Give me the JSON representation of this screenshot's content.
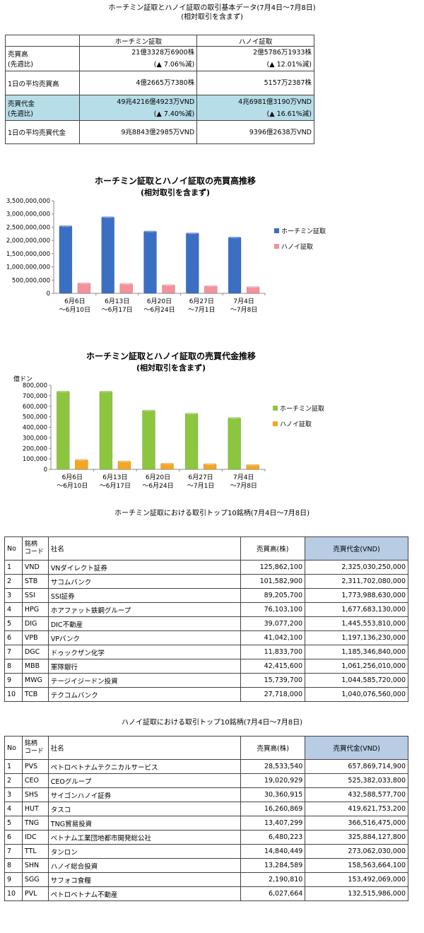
{
  "summary": {
    "title_line1": "ホーチミン証取とハノイ証取の取引基本データ(7月4日～7月8日)",
    "title_line2": "(相対取引を含まず)",
    "col_hose": "ホーチミン証取",
    "col_hnx": "ハノイ証取",
    "rows": [
      {
        "label1": "売買高",
        "label2": "(先週比)",
        "hose": "21億3328万6900株",
        "hose_chg": "(▲ 7.06%減)",
        "hnx": "2億5786万1933株",
        "hnx_chg": "(▲ 12.01%減)"
      },
      {
        "label1": "1日の平均売買高",
        "label2": "",
        "hose": "4億2665万7380株",
        "hose_chg": "",
        "hnx": "5157万2387株",
        "hnx_chg": ""
      },
      {
        "label1": "売買代金",
        "label2": "(先週比)",
        "hose": "49兆4216億4923万VND",
        "hose_chg": "(▲ 7.40%減)",
        "hnx": "4兆6981億3190万VND",
        "hnx_chg": "(▲ 16.61%減)"
      },
      {
        "label1": "1日の平均売買代金",
        "label2": "",
        "hose": "9兆8843億2985万VND",
        "hose_chg": "",
        "hnx": "9396億2638万VND",
        "hnx_chg": ""
      }
    ]
  },
  "chart_data": [
    {
      "type": "bar",
      "title": "ホーチミン証取とハノイ証取の売買高推移",
      "subtitle": "(相対取引を含まず)",
      "ylabel": "",
      "categories": [
        [
          "6月6日",
          "～6月10日"
        ],
        [
          "6月13日",
          "～6月17日"
        ],
        [
          "6月20日",
          "～6月24日"
        ],
        [
          "6月27日",
          "～7月1日"
        ],
        [
          "7月4日",
          "～7月8日"
        ]
      ],
      "series": [
        {
          "name": "ホーチミン証取",
          "color": "#3a6fc4",
          "values": [
            2560000000,
            2900000000,
            2360000000,
            2290000000,
            2133000000
          ]
        },
        {
          "name": "ハノイ証取",
          "color": "#f4919a",
          "values": [
            400000000,
            380000000,
            330000000,
            295000000,
            258000000
          ]
        }
      ],
      "ylim": [
        0,
        3500000000
      ],
      "yticks": [
        "0",
        "500,000,000",
        "1,000,000,000",
        "1,500,000,000",
        "2,000,000,000",
        "2,500,000,000",
        "3,000,000,000",
        "3,500,000,000"
      ],
      "legend": "right"
    },
    {
      "type": "bar",
      "title": "ホーチミン証取とハノイ証取の売買代金推移",
      "subtitle": "(相対取引を含まず)",
      "ylabel": "億ドン",
      "categories": [
        [
          "6月6日",
          "～6月10日"
        ],
        [
          "6月13日",
          "～6月17日"
        ],
        [
          "6月20日",
          "～6月24日"
        ],
        [
          "6月27日",
          "～7月1日"
        ],
        [
          "7月4日",
          "～7月8日"
        ]
      ],
      "series": [
        {
          "name": "ホーチミン証取",
          "color": "#8cc63f",
          "values": [
            745000,
            745000,
            565000,
            535000,
            494000
          ]
        },
        {
          "name": "ハノイ証取",
          "color": "#f5a623",
          "values": [
            95000,
            80000,
            60000,
            55000,
            47000
          ]
        }
      ],
      "ylim": [
        0,
        800000
      ],
      "yticks": [
        "0",
        "100,000",
        "200,000",
        "300,000",
        "400,000",
        "500,000",
        "600,000",
        "700,000",
        "800,000"
      ],
      "legend": "right"
    }
  ],
  "hose_rank": {
    "title": "ホーチミン証取における取引トップ10銘柄(7月4日～7月8日)",
    "headers": {
      "no": "No",
      "code1": "銘柄",
      "code2": "コード",
      "name": "社名",
      "vol": "売買高(株)",
      "val": "売買代金(VND)"
    },
    "rows": [
      {
        "no": "1",
        "code": "VND",
        "name": "VNダイレクト証券",
        "vol": "125,862,100",
        "val": "2,325,030,250,000"
      },
      {
        "no": "2",
        "code": "STB",
        "name": "サコムバンク",
        "vol": "101,582,900",
        "val": "2,311,702,080,000"
      },
      {
        "no": "3",
        "code": "SSI",
        "name": "SSI証券",
        "vol": "89,205,700",
        "val": "1,773,988,630,000"
      },
      {
        "no": "4",
        "code": "HPG",
        "name": "ホアファット鉄鋼グループ",
        "vol": "76,103,100",
        "val": "1,677,683,130,000"
      },
      {
        "no": "5",
        "code": "DIG",
        "name": "DIC不動産",
        "vol": "39,077,200",
        "val": "1,445,553,810,000"
      },
      {
        "no": "6",
        "code": "VPB",
        "name": "VPバンク",
        "vol": "41,042,100",
        "val": "1,197,136,230,000"
      },
      {
        "no": "7",
        "code": "DGC",
        "name": "ドゥックザン化学",
        "vol": "11,833,700",
        "val": "1,185,346,840,000"
      },
      {
        "no": "8",
        "code": "MBB",
        "name": "軍隊銀行",
        "vol": "42,415,600",
        "val": "1,061,256,010,000"
      },
      {
        "no": "9",
        "code": "MWG",
        "name": "テージイジードン投資",
        "vol": "15,739,700",
        "val": "1,044,585,720,000"
      },
      {
        "no": "10",
        "code": "TCB",
        "name": "テクコムバンク",
        "vol": "27,718,000",
        "val": "1,040,076,560,000"
      }
    ]
  },
  "hnx_rank": {
    "title": "ハノイ証取における取引トップ10銘柄(7月4日～7月8日)",
    "headers": {
      "no": "No",
      "code1": "銘柄",
      "code2": "コード",
      "name": "社名",
      "vol": "売買高(株)",
      "val": "売買代金(VND)"
    },
    "rows": [
      {
        "no": "1",
        "code": "PVS",
        "name": "ペトロベトナムテクニカルサービス",
        "vol": "28,533,540",
        "val": "657,869,714,900"
      },
      {
        "no": "2",
        "code": "CEO",
        "name": "CEOグループ",
        "vol": "19,020,929",
        "val": "525,382,033,800"
      },
      {
        "no": "3",
        "code": "SHS",
        "name": "サイゴンハノイ証券",
        "vol": "30,360,915",
        "val": "432,588,577,700"
      },
      {
        "no": "4",
        "code": "HUT",
        "name": "タスコ",
        "vol": "16,260,869",
        "val": "419,621,753,200"
      },
      {
        "no": "5",
        "code": "TNG",
        "name": "TNG貿易投資",
        "vol": "13,407,299",
        "val": "366,516,475,000"
      },
      {
        "no": "6",
        "code": "IDC",
        "name": "ベトナム工業団地都市開発総公社",
        "vol": "6,480,223",
        "val": "325,884,127,800"
      },
      {
        "no": "7",
        "code": "TTL",
        "name": "タンロン",
        "vol": "14,840,449",
        "val": "273,062,030,000"
      },
      {
        "no": "8",
        "code": "SHN",
        "name": "ハノイ総合投資",
        "vol": "13,284,589",
        "val": "158,563,664,100"
      },
      {
        "no": "9",
        "code": "SGG",
        "name": "サフォコ食糧",
        "vol": "2,190,810",
        "val": "153,492,069,000"
      },
      {
        "no": "10",
        "code": "PVL",
        "name": "ペトロベトナム不動産",
        "vol": "6,027,664",
        "val": "132,515,986,000"
      }
    ]
  }
}
